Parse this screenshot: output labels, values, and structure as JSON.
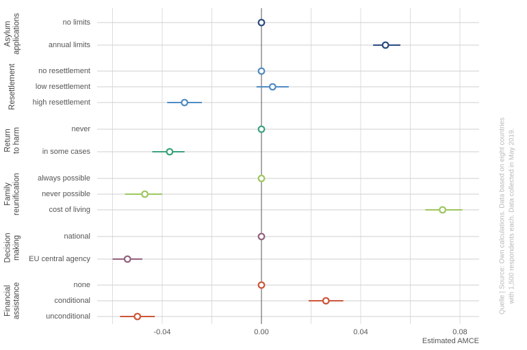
{
  "chart_data": {
    "type": "scatter",
    "xlabel": "Estimated AMCE",
    "xlim": [
      -0.066,
      0.088
    ],
    "xticks": [
      -0.04,
      0.0,
      0.04,
      0.08
    ],
    "xtick_labels": [
      "-0.04",
      "0.00",
      "0.04",
      "0.08"
    ],
    "grid": true,
    "groups": [
      {
        "name": "Asylum applications",
        "label_lines": [
          "Asylum",
          "applications"
        ],
        "color": "#2b4a7e",
        "levels": [
          {
            "label": "no limits",
            "estimate": 0.0,
            "ci": [
              0.0,
              0.0
            ]
          },
          {
            "label": "annual limits",
            "estimate": 0.05,
            "ci": [
              0.045,
              0.056
            ]
          }
        ]
      },
      {
        "name": "Resettlement",
        "label_lines": [
          "Resettlement"
        ],
        "color": "#4f8bc2",
        "levels": [
          {
            "label": "no resettlement",
            "estimate": 0.0,
            "ci": [
              0.0,
              0.0
            ]
          },
          {
            "label": "low resettlement",
            "estimate": 0.0045,
            "ci": [
              -0.002,
              0.011
            ]
          },
          {
            "label": "high resettlement",
            "estimate": -0.031,
            "ci": [
              -0.038,
              -0.024
            ]
          }
        ]
      },
      {
        "name": "Return to harm",
        "label_lines": [
          "Return",
          "to harm"
        ],
        "color": "#3aa37a",
        "levels": [
          {
            "label": "never",
            "estimate": 0.0,
            "ci": [
              0.0,
              0.0
            ]
          },
          {
            "label": "in some cases",
            "estimate": -0.037,
            "ci": [
              -0.044,
              -0.031
            ]
          }
        ]
      },
      {
        "name": "Family reunification",
        "label_lines": [
          "Family",
          "reunification"
        ],
        "color": "#9dc65f",
        "levels": [
          {
            "label": "always possible",
            "estimate": 0.0,
            "ci": [
              0.0,
              0.0
            ]
          },
          {
            "label": "never possible",
            "estimate": -0.047,
            "ci": [
              -0.055,
              -0.04
            ]
          },
          {
            "label": "cost of living",
            "estimate": 0.073,
            "ci": [
              0.066,
              0.081
            ]
          }
        ]
      },
      {
        "name": "Decision making",
        "label_lines": [
          "Decision",
          "making"
        ],
        "color": "#93607d",
        "levels": [
          {
            "label": "national",
            "estimate": 0.0,
            "ci": [
              0.0,
              0.0
            ]
          },
          {
            "label": "EU central agency",
            "estimate": -0.054,
            "ci": [
              -0.06,
              -0.048
            ]
          }
        ]
      },
      {
        "name": "Financial assistance",
        "label_lines": [
          "Financial",
          "assistance"
        ],
        "color": "#cc5539",
        "levels": [
          {
            "label": "none",
            "estimate": 0.0,
            "ci": [
              0.0,
              0.0
            ]
          },
          {
            "label": "conditional",
            "estimate": 0.026,
            "ci": [
              0.019,
              0.033
            ]
          },
          {
            "label": "unconditional",
            "estimate": -0.05,
            "ci": [
              -0.057,
              -0.043
            ]
          }
        ]
      }
    ]
  },
  "source_note": {
    "line1": "Quelle | Source: Own calculations. Data based on eight countries",
    "line2": "with 1,500 respondents each. Data collected in May 2019."
  }
}
